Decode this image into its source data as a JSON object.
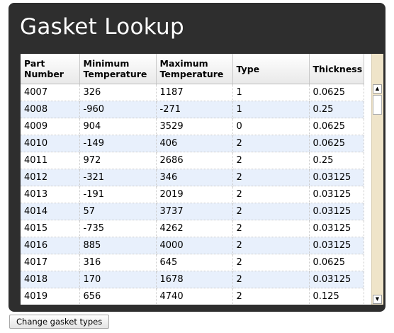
{
  "title": "Gasket Lookup",
  "table": {
    "headers": [
      [
        "Part",
        "Number"
      ],
      [
        "Minimum",
        "Temperature"
      ],
      [
        "Maximum",
        "Temperature"
      ],
      [
        "Type"
      ],
      [
        "Thickness"
      ]
    ],
    "rows": [
      [
        "4007",
        "326",
        "1187",
        "1",
        "0.0625"
      ],
      [
        "4008",
        "-960",
        "-271",
        "1",
        "0.25"
      ],
      [
        "4009",
        "904",
        "3529",
        "0",
        "0.0625"
      ],
      [
        "4010",
        "-149",
        "406",
        "2",
        "0.0625"
      ],
      [
        "4011",
        "972",
        "2686",
        "2",
        "0.25"
      ],
      [
        "4012",
        "-321",
        "346",
        "2",
        "0.03125"
      ],
      [
        "4013",
        "-191",
        "2019",
        "2",
        "0.03125"
      ],
      [
        "4014",
        "57",
        "3737",
        "2",
        "0.03125"
      ],
      [
        "4015",
        "-735",
        "4262",
        "2",
        "0.03125"
      ],
      [
        "4016",
        "885",
        "4000",
        "2",
        "0.03125"
      ],
      [
        "4017",
        "316",
        "645",
        "2",
        "0.0625"
      ],
      [
        "4018",
        "170",
        "1678",
        "2",
        "0.03125"
      ],
      [
        "4019",
        "656",
        "4740",
        "2",
        "0.125"
      ]
    ]
  },
  "scrollbar": {
    "up_arrow": "▲",
    "down_arrow": "▼"
  },
  "button_label": "Change gasket types"
}
